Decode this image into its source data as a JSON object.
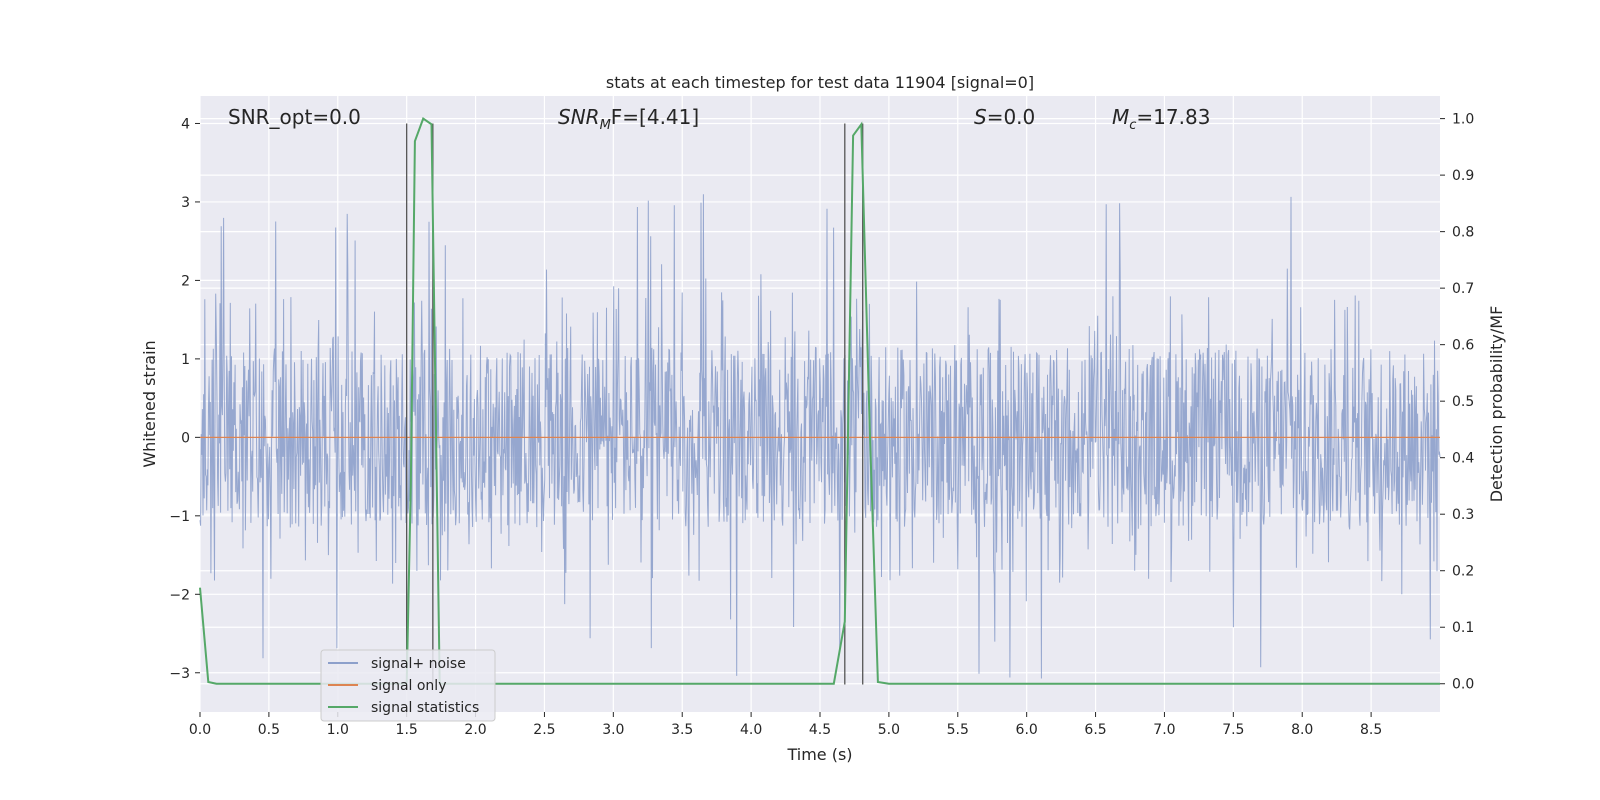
{
  "chart_data": {
    "type": "line",
    "title": "stats at each timestep for test data 11904 [signal=0]",
    "xlabel": "Time (s)",
    "ylabel": "Whitened strain",
    "ylabel_right": "Detection probability/MF",
    "xlim": [
      0.0,
      9.0
    ],
    "ylim": [
      -3.5,
      4.35
    ],
    "ylim_right": [
      -0.05,
      1.04
    ],
    "x_ticks": [
      0.0,
      0.5,
      1.0,
      1.5,
      2.0,
      2.5,
      3.0,
      3.5,
      4.0,
      4.5,
      5.0,
      5.5,
      6.0,
      6.5,
      7.0,
      7.5,
      8.0,
      8.5
    ],
    "x_tick_labels": [
      "0.0",
      "0.5",
      "1.0",
      "1.5",
      "2.0",
      "2.5",
      "3.0",
      "3.5",
      "4.0",
      "4.5",
      "5.0",
      "5.5",
      "6.0",
      "6.5",
      "7.0",
      "7.5",
      "8.0",
      "8.5"
    ],
    "y_ticks": [
      4,
      3,
      2,
      1,
      0,
      -1,
      -2,
      -3
    ],
    "y_tick_labels": [
      "4",
      "3",
      "2",
      "1",
      "0",
      "−1",
      "−2",
      "−3"
    ],
    "y_right_ticks": [
      1.0,
      0.9,
      0.8,
      0.7,
      0.6,
      0.5,
      0.4,
      0.3,
      0.2,
      0.1,
      0.0
    ],
    "y_right_tick_labels": [
      "1.0",
      "0.9",
      "0.8",
      "0.7",
      "0.6",
      "0.5",
      "0.4",
      "0.3",
      "0.2",
      "0.1",
      "0.0"
    ],
    "annotations": [
      "SNR_opt=0.0",
      "SNR",
      "M",
      "F=[4.41]",
      "S",
      "=0.0",
      "M",
      "c",
      "=17.83"
    ],
    "legend": {
      "placement": "lower-left",
      "entries": [
        "signal+ noise",
        "signal only",
        "signal statistics"
      ]
    },
    "grid": true,
    "colors": {
      "noise": "#8da0cb",
      "signal": "#dd8452",
      "stats": "#55a868",
      "vlines": "#555555",
      "background": "#eaeaf2"
    },
    "series": [
      {
        "name": "signal+ noise",
        "kind": "noise",
        "n_samples": 2048,
        "envelope_typical": 1.15,
        "x_range": [
          0.0,
          9.0
        ],
        "max": 3.38,
        "min": -3.15
      },
      {
        "name": "signal only",
        "kind": "constant",
        "x": [
          0.0,
          9.0
        ],
        "y": [
          0.0,
          0.0
        ]
      },
      {
        "name": "signal statistics",
        "axis": "right",
        "x": [
          0.0,
          0.06,
          0.12,
          1.5,
          1.53,
          1.56,
          1.62,
          1.68,
          1.74,
          4.6,
          4.68,
          4.74,
          4.8,
          4.86,
          4.92,
          5.0,
          9.0
        ],
        "y": [
          0.17,
          0.003,
          0.0,
          0.0,
          0.35,
          0.96,
          1.0,
          0.99,
          0.0,
          0.0,
          0.11,
          0.97,
          0.99,
          0.46,
          0.003,
          0.0,
          0.0
        ]
      }
    ],
    "vertical_lines_x": [
      1.5,
      1.69,
      4.68,
      4.81
    ]
  }
}
